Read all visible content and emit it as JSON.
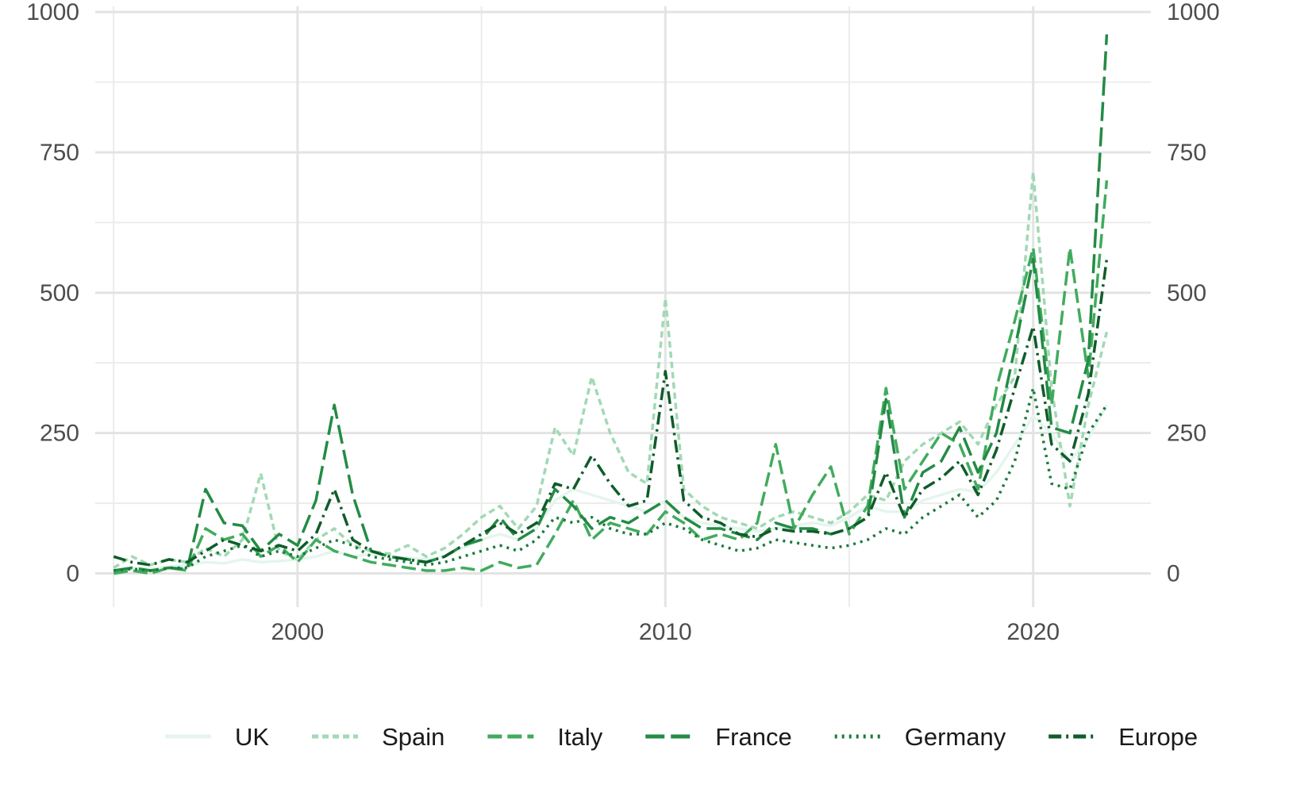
{
  "chart_data": {
    "type": "line",
    "title": "",
    "xlabel": "",
    "ylabel": "",
    "xlim": [
      1994.5,
      2023.2
    ],
    "ylim": [
      -60,
      1010
    ],
    "x_ticks": [
      2000,
      2010,
      2020
    ],
    "x_tick_labels": [
      "2000",
      "2010",
      "2020"
    ],
    "y_ticks": [
      0,
      250,
      500,
      750,
      1000
    ],
    "y_tick_labels": [
      "0",
      "250",
      "500",
      "750",
      "1000"
    ],
    "secondary_y_axis": true,
    "grid": true,
    "legend_position": "bottom",
    "x": [
      1995.0,
      1995.5,
      1996.0,
      1996.5,
      1997.0,
      1997.5,
      1998.0,
      1998.5,
      1999.0,
      1999.5,
      2000.0,
      2000.5,
      2001.0,
      2001.5,
      2002.0,
      2002.5,
      2003.0,
      2003.5,
      2004.0,
      2004.5,
      2005.0,
      2005.5,
      2006.0,
      2006.5,
      2007.0,
      2007.5,
      2008.0,
      2008.5,
      2009.0,
      2009.5,
      2010.0,
      2010.5,
      2011.0,
      2011.5,
      2012.0,
      2012.5,
      2013.0,
      2013.5,
      2014.0,
      2014.5,
      2015.0,
      2015.5,
      2016.0,
      2016.5,
      2017.0,
      2017.5,
      2018.0,
      2018.5,
      2019.0,
      2019.5,
      2020.0,
      2020.5,
      2021.0,
      2021.5,
      2022.0
    ],
    "series": [
      {
        "name": "UK",
        "color": "#e5f5ee",
        "dash": "solid",
        "values": [
          5,
          10,
          8,
          12,
          15,
          20,
          18,
          25,
          20,
          22,
          25,
          30,
          40,
          30,
          35,
          30,
          28,
          25,
          30,
          45,
          60,
          70,
          60,
          80,
          130,
          150,
          140,
          130,
          120,
          110,
          130,
          100,
          90,
          85,
          80,
          75,
          80,
          85,
          90,
          85,
          100,
          120,
          110,
          110,
          130,
          140,
          150,
          145,
          180,
          230,
          280,
          250,
          200,
          240,
          300
        ]
      },
      {
        "name": "Spain",
        "color": "#a1d9b4",
        "dash": "8,5",
        "values": [
          10,
          30,
          15,
          25,
          20,
          45,
          30,
          60,
          178,
          40,
          25,
          60,
          80,
          50,
          40,
          35,
          50,
          30,
          45,
          70,
          100,
          120,
          80,
          120,
          260,
          210,
          350,
          250,
          180,
          160,
          490,
          150,
          120,
          100,
          90,
          80,
          100,
          110,
          100,
          90,
          110,
          140,
          130,
          200,
          230,
          250,
          270,
          230,
          300,
          350,
          715,
          330,
          120,
          300,
          430
        ]
      },
      {
        "name": "Italy",
        "color": "#41ab5d",
        "dash": "18,7",
        "values": [
          0,
          5,
          0,
          10,
          5,
          80,
          60,
          70,
          30,
          50,
          20,
          60,
          40,
          30,
          20,
          15,
          10,
          5,
          5,
          10,
          5,
          20,
          10,
          15,
          70,
          130,
          60,
          90,
          80,
          70,
          110,
          90,
          60,
          70,
          60,
          90,
          230,
          80,
          140,
          190,
          70,
          120,
          330,
          150,
          200,
          250,
          230,
          150,
          330,
          450,
          580,
          300,
          580,
          350,
          700
        ]
      },
      {
        "name": "France",
        "color": "#238b45",
        "dash": "24,8",
        "values": [
          5,
          10,
          5,
          10,
          8,
          150,
          90,
          85,
          40,
          70,
          50,
          130,
          300,
          140,
          40,
          30,
          25,
          20,
          30,
          50,
          60,
          100,
          60,
          80,
          150,
          120,
          80,
          100,
          90,
          110,
          130,
          100,
          80,
          80,
          70,
          60,
          90,
          80,
          80,
          70,
          80,
          100,
          310,
          100,
          180,
          200,
          260,
          180,
          250,
          400,
          560,
          260,
          250,
          380,
          960
        ]
      },
      {
        "name": "Germany",
        "color": "#1b7a3c",
        "dash": "3,6",
        "values": [
          5,
          8,
          5,
          10,
          10,
          30,
          40,
          50,
          30,
          40,
          30,
          45,
          60,
          50,
          30,
          25,
          20,
          15,
          20,
          30,
          40,
          50,
          40,
          60,
          100,
          90,
          100,
          80,
          70,
          70,
          90,
          80,
          60,
          50,
          40,
          45,
          60,
          55,
          50,
          45,
          50,
          60,
          80,
          70,
          100,
          120,
          140,
          100,
          130,
          200,
          330,
          160,
          150,
          250,
          300
        ]
      },
      {
        "name": "Europe",
        "color": "#0f5c2a",
        "dash": "16,6,3,6",
        "values": [
          30,
          20,
          15,
          25,
          20,
          40,
          60,
          50,
          40,
          50,
          40,
          70,
          150,
          60,
          40,
          30,
          25,
          20,
          30,
          50,
          70,
          90,
          70,
          90,
          160,
          150,
          210,
          160,
          120,
          130,
          360,
          130,
          100,
          90,
          70,
          65,
          80,
          75,
          75,
          70,
          80,
          100,
          180,
          100,
          150,
          170,
          200,
          140,
          220,
          330,
          440,
          230,
          200,
          320,
          560
        ]
      }
    ]
  }
}
